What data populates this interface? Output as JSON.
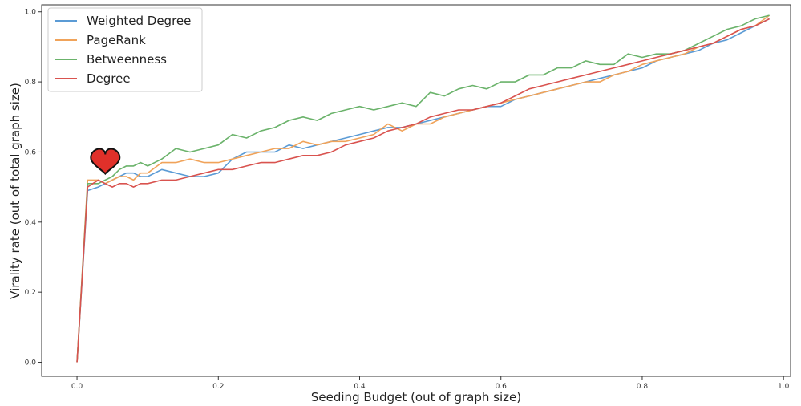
{
  "chart_data": {
    "type": "line",
    "xlabel": "Seeding Budget (out of graph size)",
    "ylabel": "Virality rate (out of total graph size)",
    "xlim": [
      -0.05,
      1.01
    ],
    "ylim": [
      -0.04,
      1.02
    ],
    "xticks": [
      0.0,
      0.2,
      0.4,
      0.6,
      0.8,
      1.0
    ],
    "xtick_labels": [
      "0.0",
      "0.2",
      "0.4",
      "0.6",
      "0.8",
      "1.0"
    ],
    "yticks": [
      0.0,
      0.2,
      0.4,
      0.6,
      0.8,
      1.0
    ],
    "ytick_labels": [
      "0.0",
      "0.2",
      "0.4",
      "0.6",
      "0.8",
      "1.0"
    ],
    "grid": false,
    "legend_position": "top-left",
    "x": [
      0.0,
      0.015,
      0.03,
      0.04,
      0.05,
      0.06,
      0.07,
      0.08,
      0.09,
      0.1,
      0.12,
      0.14,
      0.16,
      0.18,
      0.2,
      0.22,
      0.24,
      0.26,
      0.28,
      0.3,
      0.32,
      0.34,
      0.36,
      0.38,
      0.4,
      0.42,
      0.44,
      0.46,
      0.48,
      0.5,
      0.52,
      0.54,
      0.56,
      0.58,
      0.6,
      0.62,
      0.64,
      0.66,
      0.68,
      0.7,
      0.72,
      0.74,
      0.76,
      0.78,
      0.8,
      0.82,
      0.84,
      0.86,
      0.88,
      0.9,
      0.92,
      0.94,
      0.96,
      0.98
    ],
    "series": [
      {
        "name": "Weighted Degree",
        "color": "#5b9bd5",
        "values": [
          0.0,
          0.49,
          0.5,
          0.51,
          0.52,
          0.53,
          0.54,
          0.54,
          0.53,
          0.53,
          0.55,
          0.54,
          0.53,
          0.53,
          0.54,
          0.58,
          0.6,
          0.6,
          0.6,
          0.62,
          0.61,
          0.62,
          0.63,
          0.64,
          0.65,
          0.66,
          0.67,
          0.67,
          0.68,
          0.69,
          0.7,
          0.71,
          0.72,
          0.73,
          0.73,
          0.75,
          0.76,
          0.77,
          0.78,
          0.79,
          0.8,
          0.81,
          0.82,
          0.83,
          0.84,
          0.86,
          0.87,
          0.88,
          0.89,
          0.91,
          0.92,
          0.94,
          0.96,
          0.98
        ]
      },
      {
        "name": "PageRank",
        "color": "#f0a35a",
        "values": [
          0.0,
          0.52,
          0.52,
          0.51,
          0.52,
          0.53,
          0.53,
          0.52,
          0.54,
          0.54,
          0.57,
          0.57,
          0.58,
          0.57,
          0.57,
          0.58,
          0.59,
          0.6,
          0.61,
          0.61,
          0.63,
          0.62,
          0.63,
          0.63,
          0.64,
          0.65,
          0.68,
          0.66,
          0.68,
          0.68,
          0.7,
          0.71,
          0.72,
          0.73,
          0.74,
          0.75,
          0.76,
          0.77,
          0.78,
          0.79,
          0.8,
          0.8,
          0.82,
          0.83,
          0.85,
          0.86,
          0.87,
          0.88,
          0.9,
          0.91,
          0.93,
          0.95,
          0.96,
          0.99
        ]
      },
      {
        "name": "Betweenness",
        "color": "#6bb36b",
        "values": [
          0.0,
          0.51,
          0.51,
          0.52,
          0.53,
          0.55,
          0.56,
          0.56,
          0.57,
          0.56,
          0.58,
          0.61,
          0.6,
          0.61,
          0.62,
          0.65,
          0.64,
          0.66,
          0.67,
          0.69,
          0.7,
          0.69,
          0.71,
          0.72,
          0.73,
          0.72,
          0.73,
          0.74,
          0.73,
          0.77,
          0.76,
          0.78,
          0.79,
          0.78,
          0.8,
          0.8,
          0.82,
          0.82,
          0.84,
          0.84,
          0.86,
          0.85,
          0.85,
          0.88,
          0.87,
          0.88,
          0.88,
          0.89,
          0.91,
          0.93,
          0.95,
          0.96,
          0.98,
          0.99
        ]
      },
      {
        "name": "Degree",
        "color": "#d9534f",
        "values": [
          0.0,
          0.5,
          0.52,
          0.51,
          0.5,
          0.51,
          0.51,
          0.5,
          0.51,
          0.51,
          0.52,
          0.52,
          0.53,
          0.54,
          0.55,
          0.55,
          0.56,
          0.57,
          0.57,
          0.58,
          0.59,
          0.59,
          0.6,
          0.62,
          0.63,
          0.64,
          0.66,
          0.67,
          0.68,
          0.7,
          0.71,
          0.72,
          0.72,
          0.73,
          0.74,
          0.76,
          0.78,
          0.79,
          0.8,
          0.81,
          0.82,
          0.83,
          0.84,
          0.85,
          0.86,
          0.87,
          0.88,
          0.89,
          0.9,
          0.91,
          0.93,
          0.95,
          0.96,
          0.98
        ]
      }
    ],
    "annotation": {
      "shape": "heart",
      "x": 0.04,
      "y": 0.57,
      "fill_color": "#e0302a",
      "stroke_color": "#111111"
    }
  }
}
